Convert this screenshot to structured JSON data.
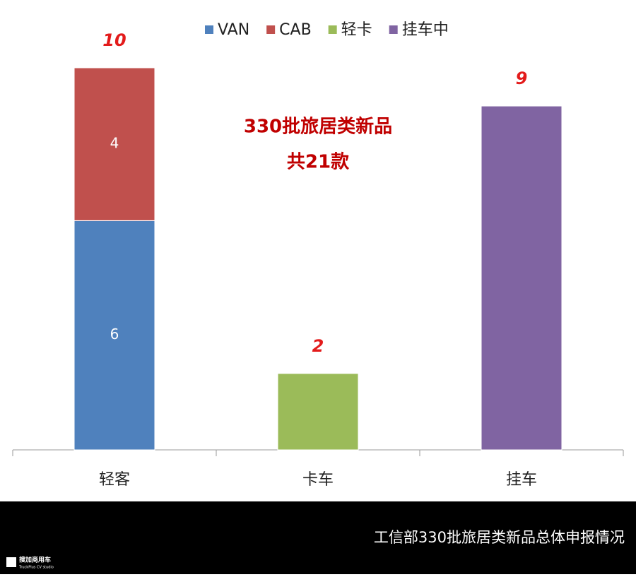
{
  "chart_data": {
    "type": "stacked_bar",
    "categories": [
      "轻客",
      "卡车",
      "挂车"
    ],
    "series": [
      {
        "name": "VAN",
        "color": "#4f81bd",
        "values": [
          6,
          null,
          null
        ],
        "labels": true
      },
      {
        "name": "CAB",
        "color": "#c0504d",
        "values": [
          4,
          null,
          null
        ],
        "labels": true
      },
      {
        "name": "轻卡",
        "color": "#9bbb59",
        "values": [
          null,
          2,
          null
        ],
        "labels": false
      },
      {
        "name": "挂车中",
        "color": "#8064a2",
        "values": [
          null,
          null,
          9
        ],
        "labels": false
      }
    ],
    "totals": [
      10,
      2,
      9
    ],
    "ylim": [
      0,
      10
    ],
    "legend": "top",
    "annotation": [
      "330批旅居类新品",
      "共21款"
    ],
    "caption": "工信部330批旅居类新品总体申报情况",
    "logo": {
      "name": "搜加商用车",
      "subtitle": "TruckPlus CV studio"
    }
  }
}
